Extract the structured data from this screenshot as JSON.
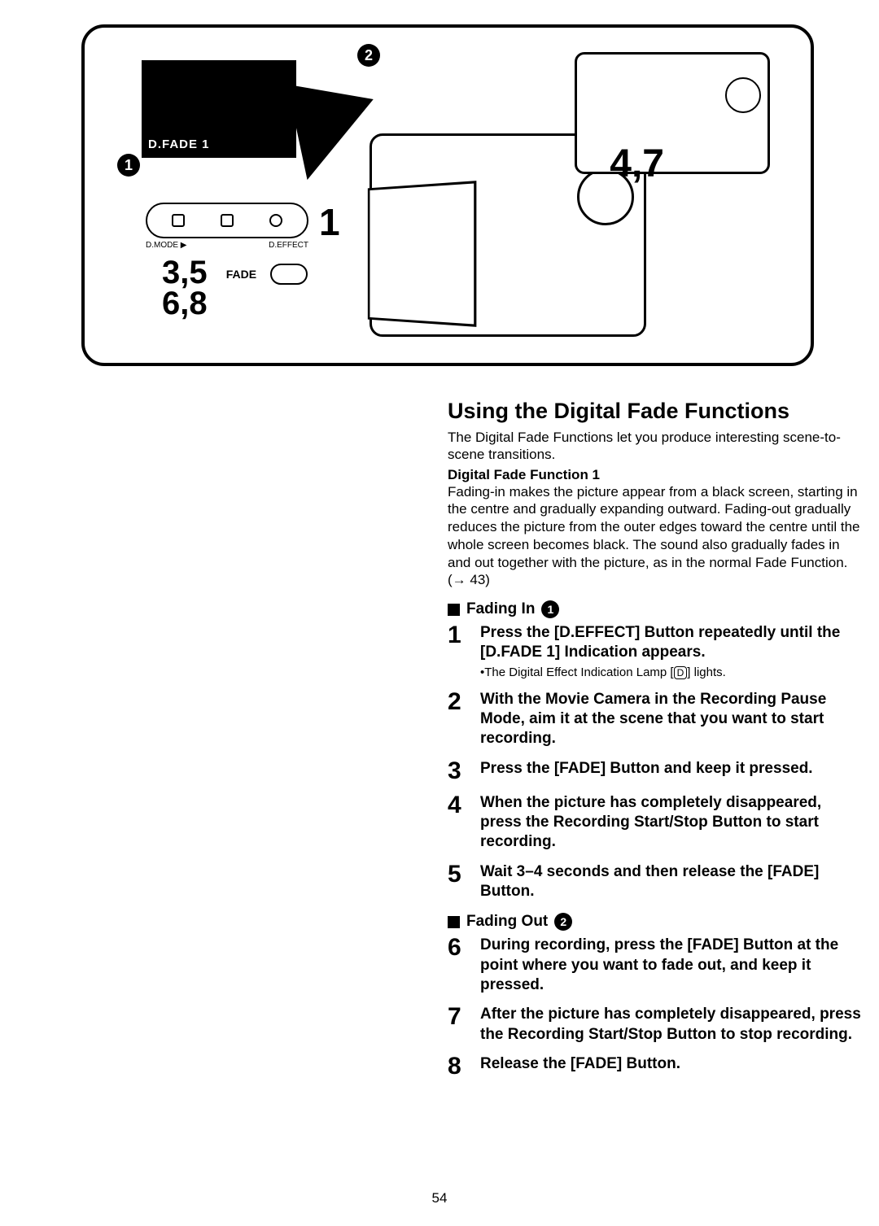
{
  "illustration": {
    "fade_thumb_label": "D.FADE 1",
    "marker1": "1",
    "marker2": "2",
    "panel_left": "D.MODE ▶",
    "panel_right": "D.EFFECT",
    "big_one": "1",
    "nums_line1": "3,5",
    "nums_line2": "6,8",
    "fade_label": "FADE",
    "num47": "4,7"
  },
  "title": "Using the Digital Fade Functions",
  "intro": "The Digital Fade Functions let you produce interesting scene-to-scene transitions.",
  "subhead": "Digital Fade Function 1",
  "para": "Fading-in makes the picture appear from a black screen, starting in the centre and gradually expanding outward. Fading-out gradually reduces the picture from the outer edges toward the centre until the whole screen becomes black. The sound also gradually fades in and out together with the picture, as in the normal Fade Function. (→ 43)",
  "fading_in_head": "Fading In",
  "fading_in_marker": "1",
  "steps_in": [
    {
      "n": "1",
      "text": "Press the [D.EFFECT] Button repeatedly until the [D.FADE 1] Indication appears.",
      "note_pre": "•The Digital Effect Indication Lamp [",
      "note_icon": "D",
      "note_post": "] lights."
    },
    {
      "n": "2",
      "text": "With the Movie Camera in the Recording Pause Mode, aim it at the scene that you want to start recording."
    },
    {
      "n": "3",
      "text": "Press the [FADE] Button and keep it pressed."
    },
    {
      "n": "4",
      "text": "When the picture has completely disappeared, press the Recording Start/Stop Button to start recording."
    },
    {
      "n": "5",
      "text": "Wait 3–4 seconds and then release the [FADE] Button."
    }
  ],
  "fading_out_head": "Fading Out",
  "fading_out_marker": "2",
  "steps_out": [
    {
      "n": "6",
      "text": "During recording, press the [FADE] Button at the point where you want to fade out, and keep it pressed."
    },
    {
      "n": "7",
      "text": "After the picture has completely disappeared, press the Recording Start/Stop Button to stop recording."
    },
    {
      "n": "8",
      "text": "Release the [FADE] Button."
    }
  ],
  "page_number": "54"
}
